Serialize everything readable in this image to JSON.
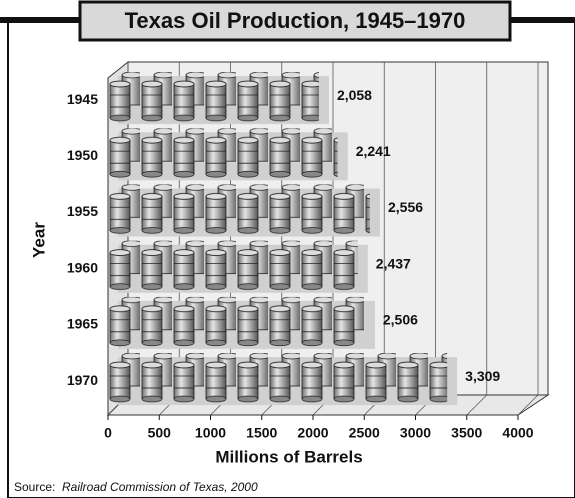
{
  "chart_data": {
    "type": "bar",
    "orientation": "horizontal",
    "title": "Texas Oil Production, 1945–1970",
    "x_label": "Millions of Barrels",
    "y_label": "Year",
    "source_label": "Source:",
    "source": "Railroad Commission of Texas, 2000",
    "categories": [
      "1945",
      "1950",
      "1955",
      "1960",
      "1965",
      "1970"
    ],
    "values": [
      2058,
      2241,
      2556,
      2437,
      2506,
      3309
    ],
    "value_labels": [
      "2,058",
      "2,241",
      "2,556",
      "2,437",
      "2,506",
      "3,309"
    ],
    "color": "#9a9a9a",
    "xlim": [
      0,
      4000
    ],
    "xticks": [
      0,
      500,
      1000,
      1500,
      2000,
      2500,
      3000,
      3500,
      4000
    ],
    "grid": true
  }
}
